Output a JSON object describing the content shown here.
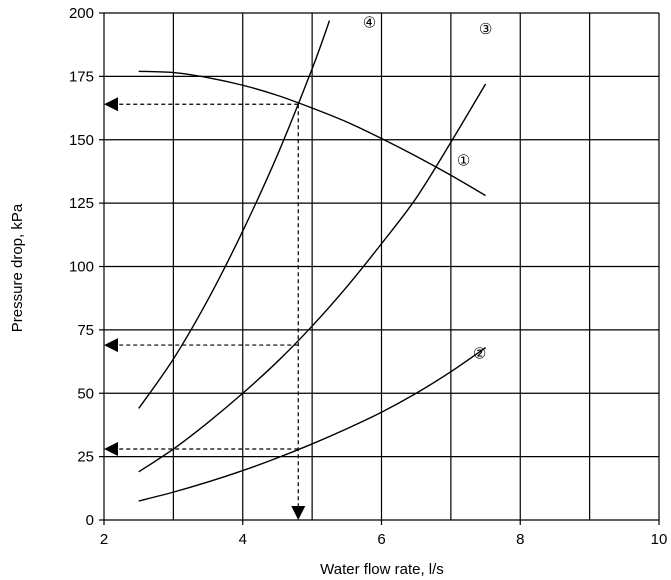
{
  "chart_data": {
    "type": "line",
    "title": "",
    "xlabel": "Water flow rate, l/s",
    "ylabel": "Pressure drop, kPa",
    "xlim": [
      2,
      10
    ],
    "ylim": [
      0,
      200
    ],
    "x_ticks": [
      2,
      4,
      6,
      8,
      10
    ],
    "y_ticks": [
      0,
      25,
      50,
      75,
      100,
      125,
      150,
      175,
      200
    ],
    "x_grid_step": 1,
    "y_grid_step": 25,
    "grid": true,
    "legend": "none",
    "series": [
      {
        "label": "①",
        "x": [
          2.5,
          3.0,
          3.5,
          4.0,
          4.5,
          5.0,
          5.5,
          6.0,
          6.5,
          7.0,
          7.5
        ],
        "y": [
          177,
          176.5,
          174.5,
          171.5,
          167.5,
          162.5,
          157,
          150.5,
          143.5,
          136,
          128
        ]
      },
      {
        "label": "②",
        "x": [
          2.5,
          3.0,
          3.5,
          4.0,
          4.5,
          5.0,
          5.5,
          6.0,
          6.5,
          7.0,
          7.5
        ],
        "y": [
          7.5,
          11,
          15,
          19.5,
          24.5,
          30,
          36,
          42.5,
          50,
          58.5,
          68
        ]
      },
      {
        "label": "③",
        "x": [
          2.5,
          3.0,
          3.5,
          4.0,
          4.5,
          5.0,
          5.5,
          6.0,
          6.5,
          7.0,
          7.5
        ],
        "y": [
          19,
          28,
          38.5,
          50,
          62.5,
          76.5,
          92,
          109,
          127,
          149,
          172
        ]
      },
      {
        "label": "④",
        "x": [
          2.5,
          3.0,
          3.5,
          4.0,
          4.5,
          5.0,
          5.25
        ],
        "y": [
          44,
          63.5,
          87,
          114,
          144,
          178,
          197
        ]
      }
    ],
    "reading_lines": {
      "flow_rate": 4.8,
      "pressure_drops": [
        164,
        69,
        28
      ]
    }
  }
}
